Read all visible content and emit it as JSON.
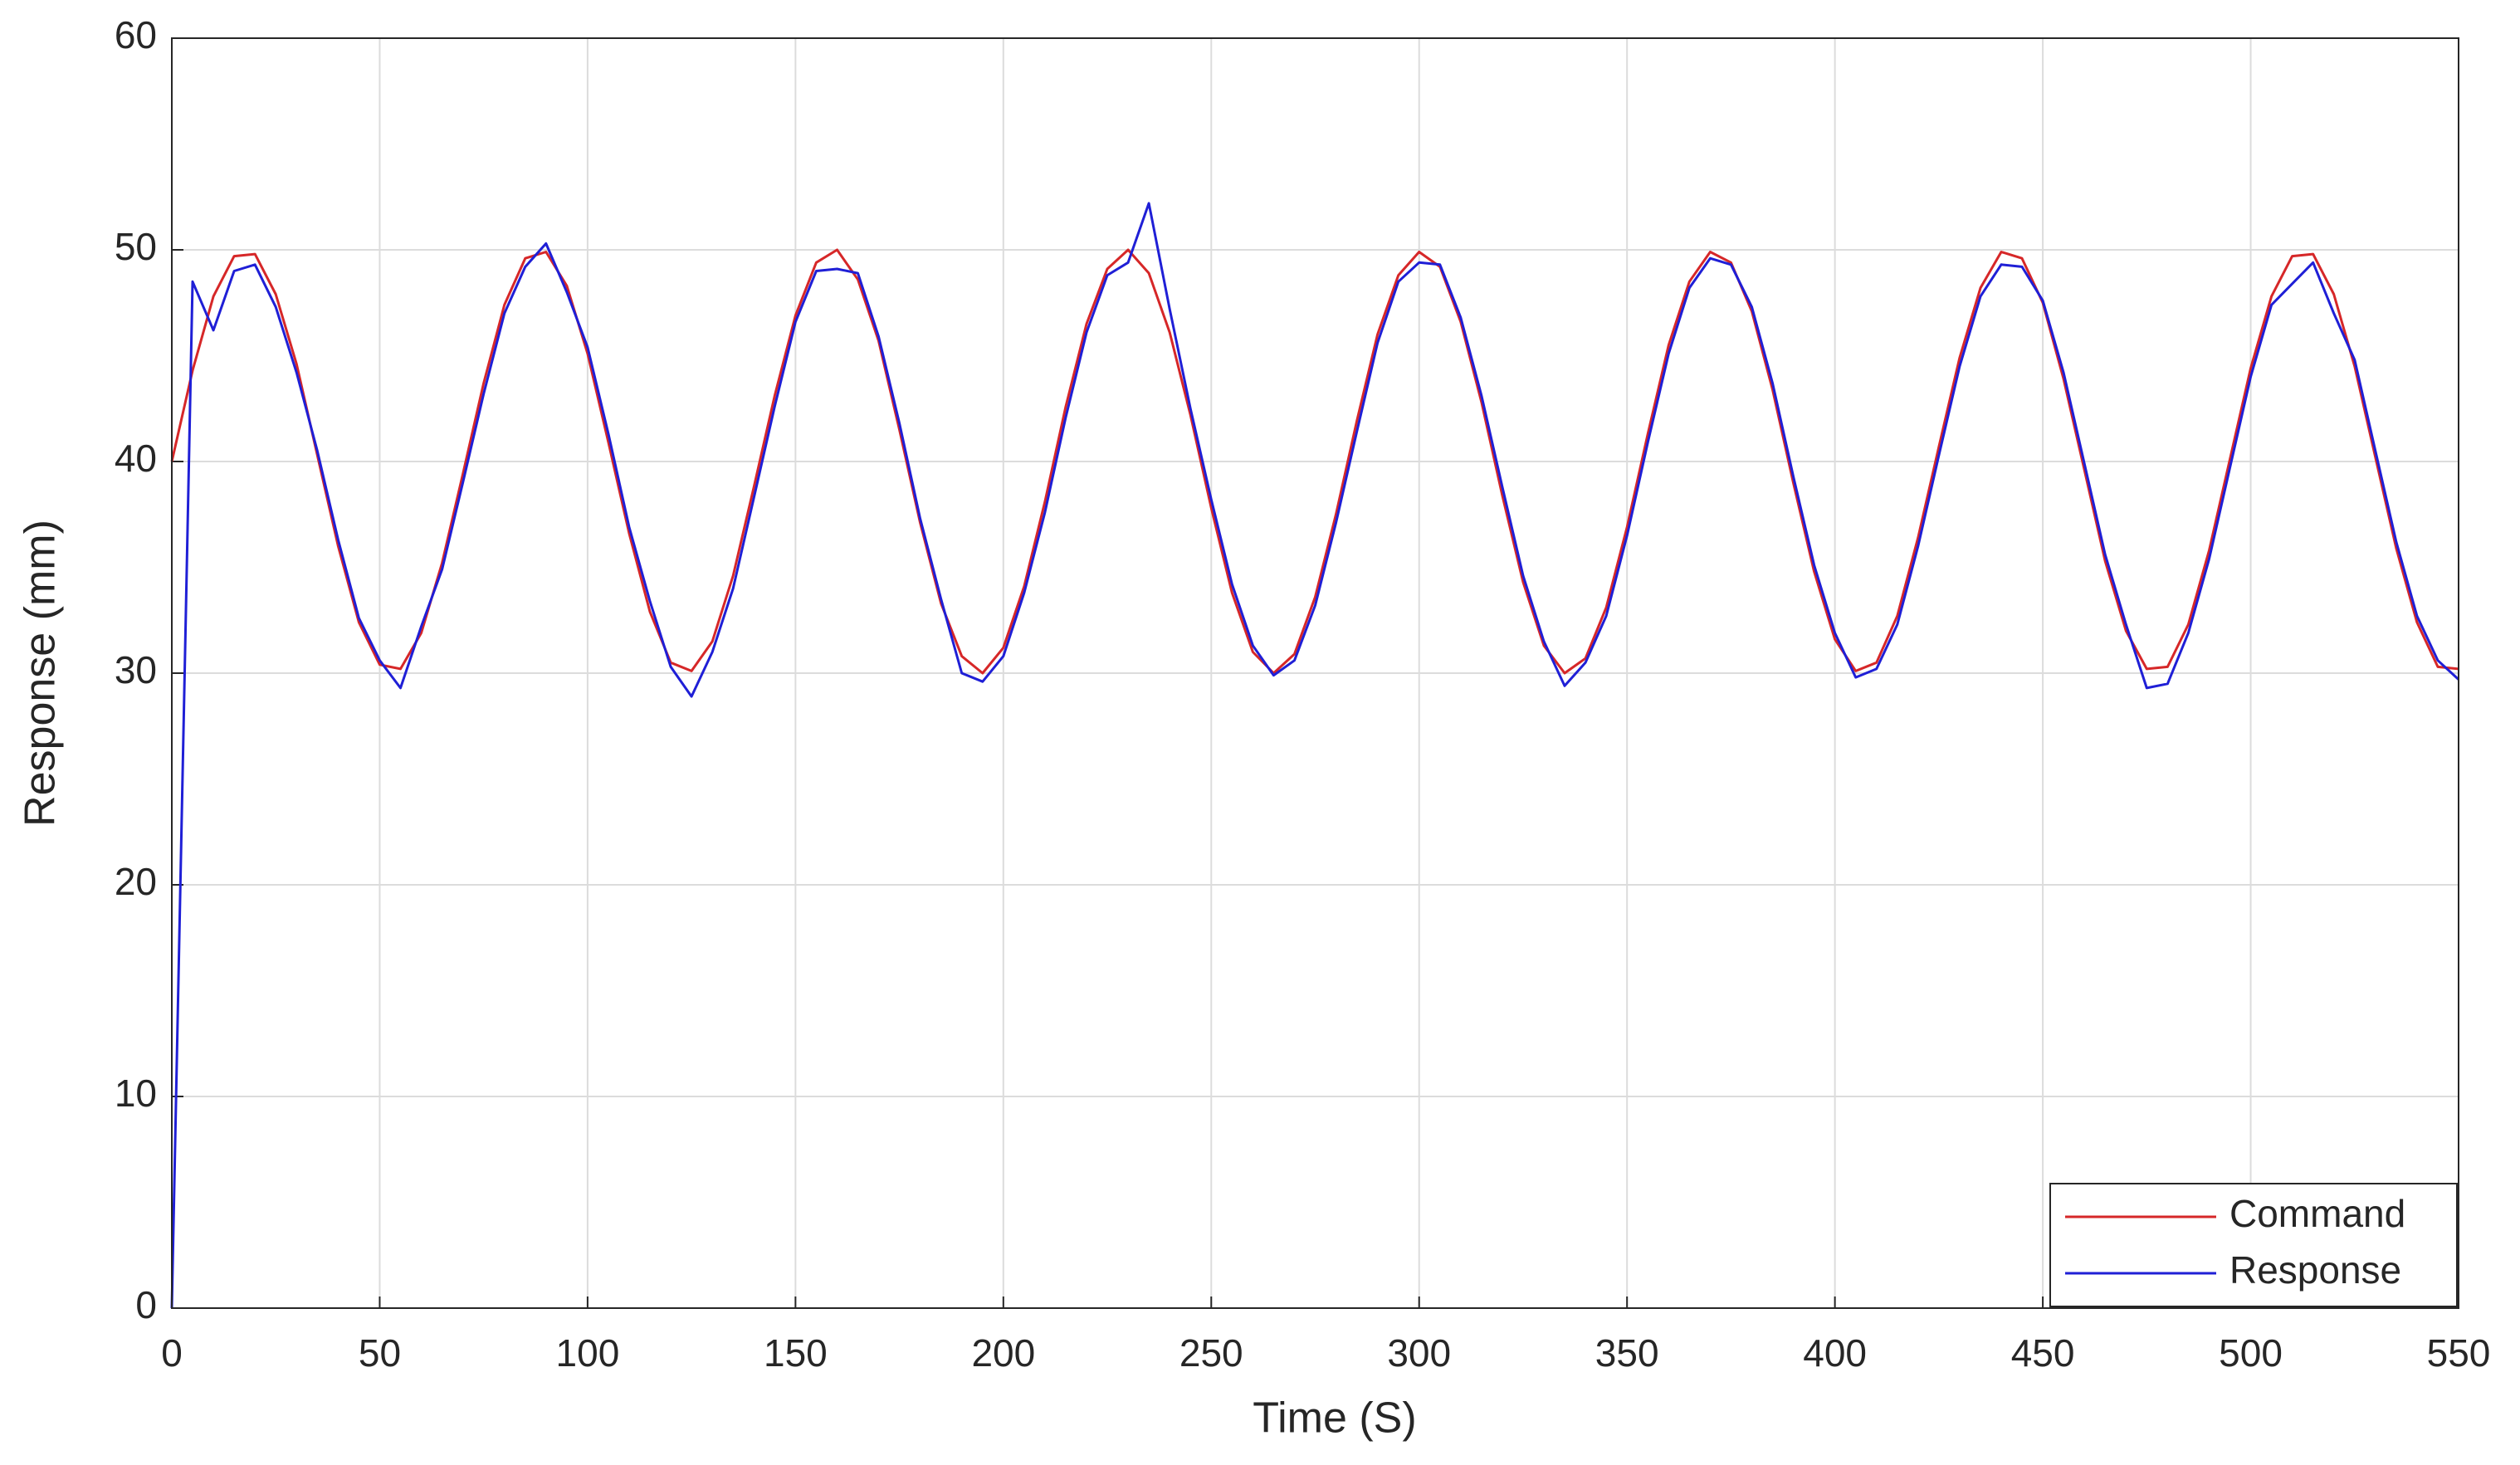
{
  "chart_data": {
    "type": "line",
    "x_label": "Time (S)",
    "y_label": "Response (mm)",
    "x": [
      0,
      5,
      10,
      15,
      20,
      25,
      30,
      35,
      40,
      45,
      50,
      55,
      60,
      65,
      70,
      75,
      80,
      85,
      90,
      95,
      100,
      105,
      110,
      115,
      120,
      125,
      130,
      135,
      140,
      145,
      150,
      155,
      160,
      165,
      170,
      175,
      180,
      185,
      190,
      195,
      200,
      205,
      210,
      215,
      220,
      225,
      230,
      235,
      240,
      245,
      250,
      255,
      260,
      265,
      270,
      275,
      280,
      285,
      290,
      295,
      300,
      305,
      310,
      315,
      320,
      325,
      330,
      335,
      340,
      345,
      350,
      355,
      360,
      365,
      370,
      375,
      380,
      385,
      390,
      395,
      400,
      405,
      410,
      415,
      420,
      425,
      430,
      435,
      440,
      445,
      450,
      455,
      460,
      465,
      470,
      475,
      480,
      485,
      490,
      495,
      500,
      505,
      510,
      515,
      520,
      525,
      530,
      535,
      540,
      545,
      550
    ],
    "series": [
      {
        "name": "Command",
        "color": "#d62728",
        "values": [
          40,
          44.3,
          47.8,
          49.7,
          49.8,
          47.9,
          44.6,
          40.3,
          36.0,
          32.4,
          30.4,
          30.2,
          31.9,
          35.2,
          39.4,
          43.7,
          47.4,
          49.6,
          49.9,
          48.3,
          45.1,
          40.9,
          36.6,
          32.9,
          30.5,
          30.1,
          31.5,
          34.6,
          38.8,
          43.1,
          46.9,
          49.4,
          50.0,
          48.6,
          45.7,
          41.5,
          37.1,
          33.3,
          30.8,
          30.0,
          31.2,
          34.1,
          38.1,
          42.6,
          46.5,
          49.1,
          50.0,
          48.9,
          46.1,
          42.2,
          37.8,
          33.8,
          31.0,
          30.0,
          30.9,
          33.6,
          37.5,
          41.9,
          46.0,
          48.8,
          49.9,
          49.2,
          46.6,
          42.8,
          38.4,
          34.3,
          31.3,
          30.0,
          30.7,
          33.1,
          36.9,
          41.3,
          45.5,
          48.5,
          49.9,
          49.4,
          47.1,
          43.4,
          39.0,
          34.8,
          31.6,
          30.1,
          30.5,
          32.7,
          36.4,
          40.7,
          44.9,
          48.2,
          49.9,
          49.6,
          47.5,
          43.9,
          39.6,
          35.3,
          32.0,
          30.2,
          30.3,
          32.3,
          35.8,
          40.1,
          44.4,
          47.8,
          49.7,
          49.8,
          47.9,
          44.5,
          40.2,
          35.9,
          32.4,
          30.3,
          30.2
        ]
      },
      {
        "name": "Response",
        "color": "#1f1fd6",
        "values": [
          0,
          48.5,
          46.2,
          49.0,
          49.3,
          47.3,
          44.2,
          40.5,
          36.3,
          32.6,
          30.6,
          29.3,
          32.2,
          34.9,
          39.0,
          43.2,
          47.0,
          49.2,
          50.3,
          48.0,
          45.4,
          41.3,
          36.9,
          33.4,
          30.3,
          28.9,
          31.0,
          34.0,
          38.3,
          42.6,
          46.6,
          49.0,
          49.1,
          48.9,
          45.9,
          41.8,
          37.3,
          33.5,
          30.0,
          29.6,
          30.8,
          33.8,
          37.6,
          42.1,
          46.1,
          48.8,
          49.4,
          52.2,
          47.2,
          42.5,
          38.2,
          34.2,
          31.3,
          29.9,
          30.6,
          33.2,
          37.1,
          41.4,
          45.6,
          48.5,
          49.4,
          49.3,
          46.8,
          43.1,
          38.8,
          34.6,
          31.5,
          29.4,
          30.5,
          32.7,
          36.5,
          40.9,
          45.1,
          48.2,
          49.6,
          49.3,
          47.3,
          43.7,
          39.3,
          35.1,
          31.9,
          29.8,
          30.2,
          32.3,
          36.0,
          40.3,
          44.5,
          47.8,
          49.3,
          49.2,
          47.6,
          44.2,
          39.9,
          35.6,
          32.3,
          29.3,
          29.5,
          31.9,
          35.4,
          39.7,
          44.0,
          47.4,
          48.4,
          49.4,
          47.0,
          44.8,
          40.5,
          36.2,
          32.7,
          30.6,
          29.7
        ]
      }
    ],
    "xlim": [
      0,
      550
    ],
    "xticks": [
      0,
      50,
      100,
      150,
      200,
      250,
      300,
      350,
      400,
      450,
      500,
      550
    ],
    "ylim": [
      0,
      60
    ],
    "yticks": [
      0,
      10,
      20,
      30,
      40,
      50,
      60
    ],
    "grid": true,
    "legend": "lower right"
  }
}
